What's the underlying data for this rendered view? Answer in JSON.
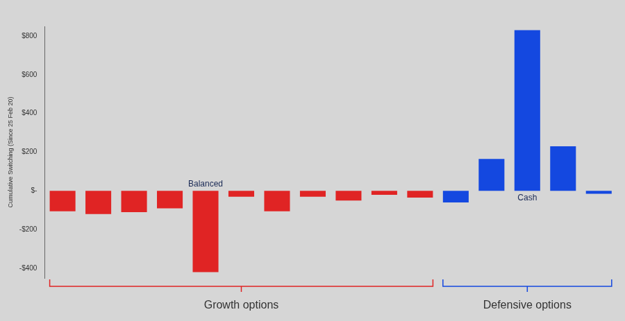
{
  "chart_data": {
    "type": "bar",
    "y_label": "Cumulative Switching (Since 25 Feb 20)",
    "categories": [
      null,
      null,
      null,
      null,
      null,
      null,
      null,
      null,
      null,
      null,
      null,
      null,
      null,
      null,
      null,
      null
    ],
    "values": [
      -105,
      -120,
      -110,
      -90,
      -420,
      -30,
      -105,
      -30,
      -50,
      -20,
      -35,
      -60,
      165,
      830,
      230,
      -15
    ],
    "colors": [
      "#e02424",
      "#e02424",
      "#e02424",
      "#e02424",
      "#e02424",
      "#e02424",
      "#e02424",
      "#e02424",
      "#e02424",
      "#e02424",
      "#e02424",
      "#1448e0",
      "#1448e0",
      "#1448e0",
      "#1448e0",
      "#1448e0"
    ],
    "ylim": [
      -450,
      850
    ],
    "yticks": [
      {
        "value": -400,
        "label": "-$400"
      },
      {
        "value": -200,
        "label": "-$200"
      },
      {
        "value": 0,
        "label": "$-"
      },
      {
        "value": 200,
        "label": "$200"
      },
      {
        "value": 400,
        "label": "$400"
      },
      {
        "value": 600,
        "label": "$600"
      },
      {
        "value": 800,
        "label": "$800"
      }
    ],
    "grid": false,
    "tick_labels": "y",
    "annotations": [
      {
        "text": "Balanced",
        "index": 4
      },
      {
        "text": "Cash",
        "index": 13
      }
    ],
    "groups": [
      {
        "label": "Growth options",
        "first": 0,
        "last": 10
      },
      {
        "label": "Defensive options",
        "first": 11,
        "last": 15
      }
    ]
  }
}
